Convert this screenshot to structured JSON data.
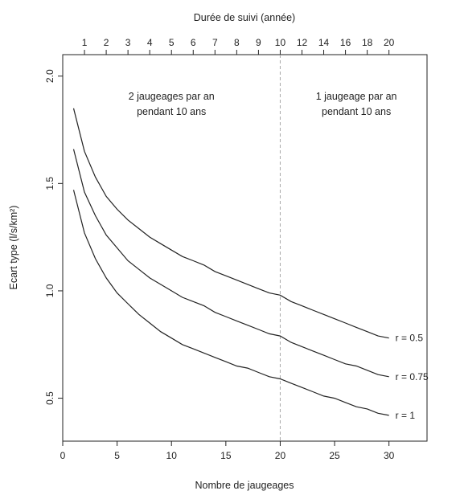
{
  "chart_data": {
    "type": "line",
    "title": "",
    "xlabel": "Nombre de jaugeages",
    "ylabel": "Ecart type (l/s/km²)",
    "top_xlabel": "Durée de suivi (année)",
    "xlim": [
      0,
      33.5
    ],
    "ylim": [
      0.3,
      2.1
    ],
    "x_ticks": [
      0,
      5,
      10,
      15,
      20,
      25,
      30
    ],
    "y_ticks": [
      0.5,
      1.0,
      1.5,
      2.0
    ],
    "y_tick_labels": [
      "0.5",
      "1.0",
      "1.5",
      "2.0"
    ],
    "top_ticks": [
      {
        "label": "1",
        "x": 2
      },
      {
        "label": "2",
        "x": 4
      },
      {
        "label": "3",
        "x": 6
      },
      {
        "label": "4",
        "x": 8
      },
      {
        "label": "5",
        "x": 10
      },
      {
        "label": "6",
        "x": 12
      },
      {
        "label": "7",
        "x": 14
      },
      {
        "label": "8",
        "x": 16
      },
      {
        "label": "9",
        "x": 18
      },
      {
        "label": "10",
        "x": 20
      },
      {
        "label": "12",
        "x": 22
      },
      {
        "label": "14",
        "x": 24
      },
      {
        "label": "16",
        "x": 26
      },
      {
        "label": "18",
        "x": 28
      },
      {
        "label": "20",
        "x": 30
      }
    ],
    "reference_line_x": 20,
    "annotations": [
      {
        "lines": [
          "2 jaugeages par an",
          "pendant 10 ans"
        ],
        "x": 10,
        "y": 1.89
      },
      {
        "lines": [
          "1 jaugeage par an",
          "pendant 10 ans"
        ],
        "x": 27,
        "y": 1.89
      }
    ],
    "x": [
      1,
      2,
      3,
      4,
      5,
      6,
      7,
      8,
      9,
      10,
      11,
      12,
      13,
      14,
      15,
      16,
      17,
      18,
      19,
      20,
      21,
      22,
      23,
      24,
      25,
      26,
      27,
      28,
      29,
      30
    ],
    "series": [
      {
        "name": "r = 0.5",
        "values": [
          1.85,
          1.65,
          1.53,
          1.44,
          1.38,
          1.33,
          1.29,
          1.25,
          1.22,
          1.19,
          1.16,
          1.14,
          1.12,
          1.09,
          1.07,
          1.05,
          1.03,
          1.01,
          0.99,
          0.98,
          0.95,
          0.93,
          0.91,
          0.89,
          0.87,
          0.85,
          0.83,
          0.81,
          0.79,
          0.78
        ]
      },
      {
        "name": "r = 0.75",
        "values": [
          1.66,
          1.46,
          1.35,
          1.26,
          1.2,
          1.14,
          1.1,
          1.06,
          1.03,
          1.0,
          0.97,
          0.95,
          0.93,
          0.9,
          0.88,
          0.86,
          0.84,
          0.82,
          0.8,
          0.79,
          0.76,
          0.74,
          0.72,
          0.7,
          0.68,
          0.66,
          0.65,
          0.63,
          0.61,
          0.6
        ]
      },
      {
        "name": "r = 1",
        "values": [
          1.47,
          1.27,
          1.15,
          1.06,
          0.99,
          0.94,
          0.89,
          0.85,
          0.81,
          0.78,
          0.75,
          0.73,
          0.71,
          0.69,
          0.67,
          0.65,
          0.64,
          0.62,
          0.6,
          0.59,
          0.57,
          0.55,
          0.53,
          0.51,
          0.5,
          0.48,
          0.46,
          0.45,
          0.43,
          0.42
        ]
      }
    ]
  }
}
